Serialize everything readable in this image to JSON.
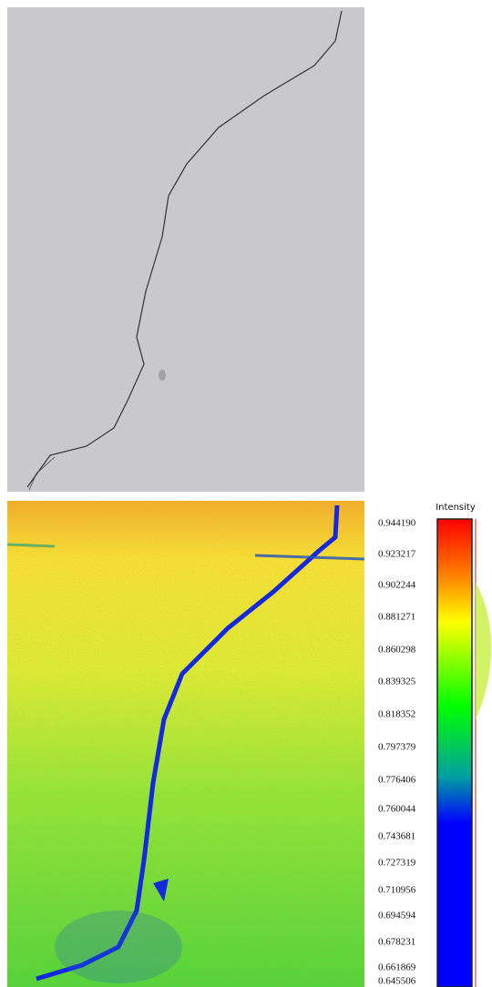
{
  "colorbar": {
    "title": "Intensity",
    "labels": [
      "0.944190",
      "0.923217",
      "0.902244",
      "0.881271",
      "0.860298",
      "0.839325",
      "0.818352",
      "0.797379",
      "0.776406",
      "0.760044",
      "0.743681",
      "0.727319",
      "0.710956",
      "0.694594",
      "0.678231",
      "0.661869",
      "0.645506"
    ]
  }
}
